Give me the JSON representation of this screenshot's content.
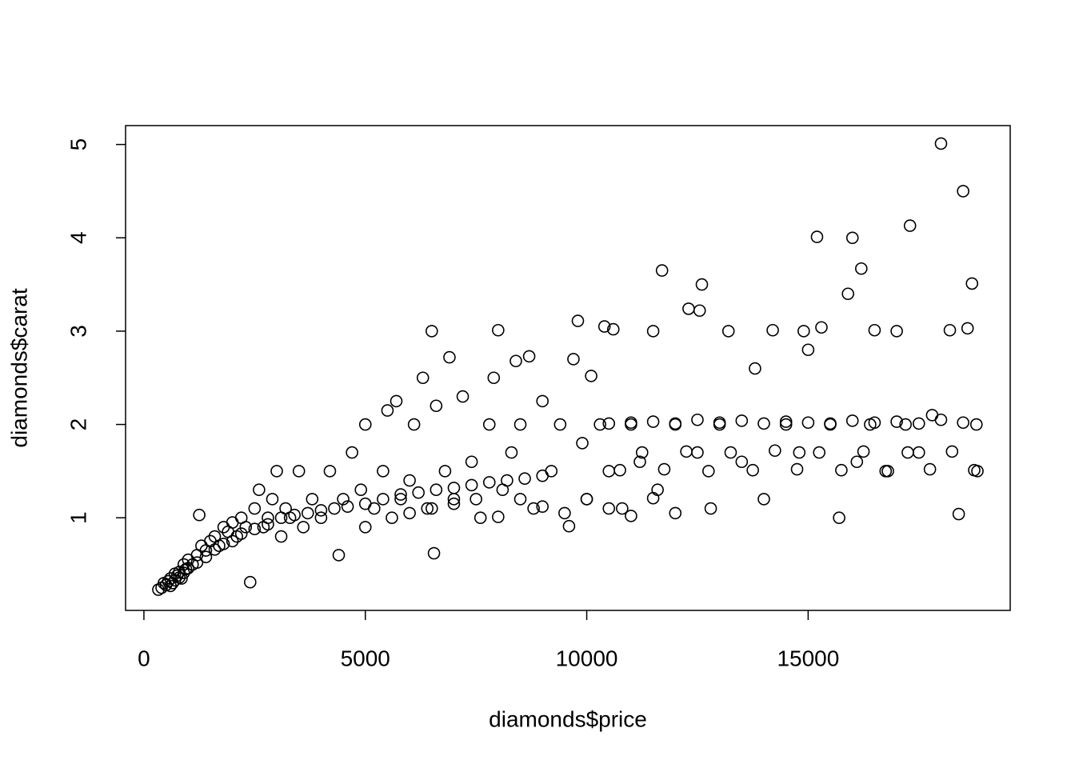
{
  "chart_data": {
    "type": "scatter",
    "x_label": "diamonds$price",
    "y_label": "diamonds$carat",
    "xlim": [
      -414,
      19563
    ],
    "ylim": [
      0.0076,
      5.2024
    ],
    "xticks": [
      0,
      5000,
      10000,
      15000
    ],
    "yticks": [
      1,
      2,
      3,
      4,
      5
    ],
    "color": "#000000",
    "x": [
      326,
      400,
      450,
      500,
      550,
      600,
      650,
      700,
      750,
      800,
      850,
      900,
      950,
      1000,
      1100,
      1200,
      1250,
      1300,
      1400,
      1500,
      1600,
      1700,
      1800,
      1900,
      2000,
      2100,
      2200,
      2300,
      2400,
      2500,
      2600,
      2700,
      2800,
      2900,
      3000,
      3100,
      3200,
      3300,
      3500,
      3600,
      3800,
      4000,
      4200,
      4400,
      4500,
      4700,
      4900,
      5000,
      5000,
      5200,
      5400,
      5500,
      5600,
      5700,
      5800,
      6000,
      6100,
      6300,
      6400,
      6500,
      6550,
      6600,
      6800,
      6900,
      7000,
      7200,
      7400,
      7600,
      7800,
      7900,
      8000,
      8100,
      8300,
      8400,
      8500,
      8700,
      8800,
      9000,
      9200,
      9400,
      9600,
      9700,
      9800,
      9900,
      10000,
      10100,
      10300,
      10400,
      10500,
      10600,
      10800,
      11000,
      11200,
      11500,
      11600,
      11700,
      12000,
      12300,
      12500,
      12550,
      12600,
      12800,
      13000,
      13200,
      13500,
      13800,
      14000,
      14200,
      14500,
      14800,
      14900,
      15000,
      15200,
      15300,
      15500,
      15700,
      15900,
      16000,
      16100,
      16200,
      16400,
      16500,
      16800,
      17000,
      17200,
      17300,
      17500,
      17800,
      18000,
      18200,
      18400,
      18500,
      18600,
      18700,
      18800,
      18823,
      10500,
      11000,
      11500,
      12000,
      12500,
      13000,
      13500,
      14000,
      14500,
      15000,
      15500,
      16000,
      16500,
      17000,
      17500,
      18000,
      18500,
      10750,
      11250,
      11750,
      12250,
      12750,
      13250,
      13750,
      14250,
      14750,
      15250,
      15750,
      16250,
      16750,
      17250,
      17750,
      18250,
      18750,
      6000,
      6500,
      7000,
      7500,
      8000,
      8500,
      9000,
      9500,
      10000,
      10500,
      11000,
      11500,
      12000,
      600,
      700,
      800,
      900,
      1000,
      1200,
      1400,
      1600,
      1800,
      2000,
      2200,
      2500,
      2800,
      3100,
      3400,
      3700,
      4000,
      4300,
      4600,
      5000,
      5400,
      5800,
      6200,
      6600,
      7000,
      7400,
      7800,
      8200,
      8600,
      9000
    ],
    "values": [
      0.23,
      0.25,
      0.3,
      0.28,
      0.32,
      0.35,
      0.3,
      0.4,
      0.38,
      0.42,
      0.35,
      0.5,
      0.45,
      0.55,
      0.5,
      0.6,
      1.03,
      0.7,
      0.65,
      0.75,
      0.8,
      0.7,
      0.9,
      0.85,
      0.95,
      0.8,
      1.0,
      0.9,
      0.31,
      1.1,
      1.3,
      0.9,
      1.0,
      1.2,
      1.5,
      0.8,
      1.1,
      1.0,
      1.5,
      0.9,
      1.2,
      1.0,
      1.5,
      0.6,
      1.2,
      1.7,
      1.3,
      2.0,
      0.9,
      1.1,
      1.5,
      2.15,
      1.0,
      2.25,
      1.2,
      1.4,
      2.0,
      2.5,
      1.1,
      3.0,
      0.62,
      2.2,
      1.5,
      2.72,
      1.2,
      2.3,
      1.6,
      1.0,
      2.0,
      2.5,
      3.01,
      1.3,
      1.7,
      2.68,
      2.0,
      2.73,
      1.1,
      2.25,
      1.5,
      2.0,
      0.91,
      2.7,
      3.11,
      1.8,
      1.2,
      2.52,
      2.0,
      3.05,
      1.5,
      3.02,
      1.1,
      2.0,
      1.6,
      3.0,
      1.3,
      3.65,
      2.0,
      3.24,
      1.7,
      3.22,
      3.5,
      1.1,
      2.0,
      3.0,
      1.6,
      2.6,
      1.2,
      3.01,
      2.0,
      1.7,
      3.0,
      2.8,
      4.01,
      3.04,
      2.0,
      1.0,
      3.4,
      4.0,
      1.6,
      3.67,
      2.0,
      3.01,
      1.5,
      3.0,
      2.0,
      4.13,
      1.7,
      2.1,
      5.01,
      3.01,
      1.04,
      4.5,
      3.03,
      3.51,
      2.0,
      1.5,
      2.01,
      2.02,
      2.03,
      2.01,
      2.05,
      2.02,
      2.04,
      2.01,
      2.03,
      2.02,
      2.01,
      2.04,
      2.02,
      2.03,
      2.01,
      2.05,
      2.02,
      1.51,
      1.7,
      1.52,
      1.71,
      1.5,
      1.7,
      1.51,
      1.72,
      1.52,
      1.7,
      1.51,
      1.71,
      1.5,
      1.7,
      1.52,
      1.71,
      1.51,
      1.05,
      1.1,
      1.15,
      1.2,
      1.01,
      1.2,
      1.12,
      1.05,
      1.2,
      1.1,
      1.02,
      1.21,
      1.05,
      0.27,
      0.33,
      0.36,
      0.41,
      0.46,
      0.52,
      0.58,
      0.66,
      0.72,
      0.75,
      0.83,
      0.88,
      0.93,
      1.0,
      1.03,
      1.05,
      1.08,
      1.1,
      1.12,
      1.15,
      1.2,
      1.25,
      1.27,
      1.3,
      1.32,
      1.35,
      1.38,
      1.4,
      1.42,
      1.45
    ]
  }
}
